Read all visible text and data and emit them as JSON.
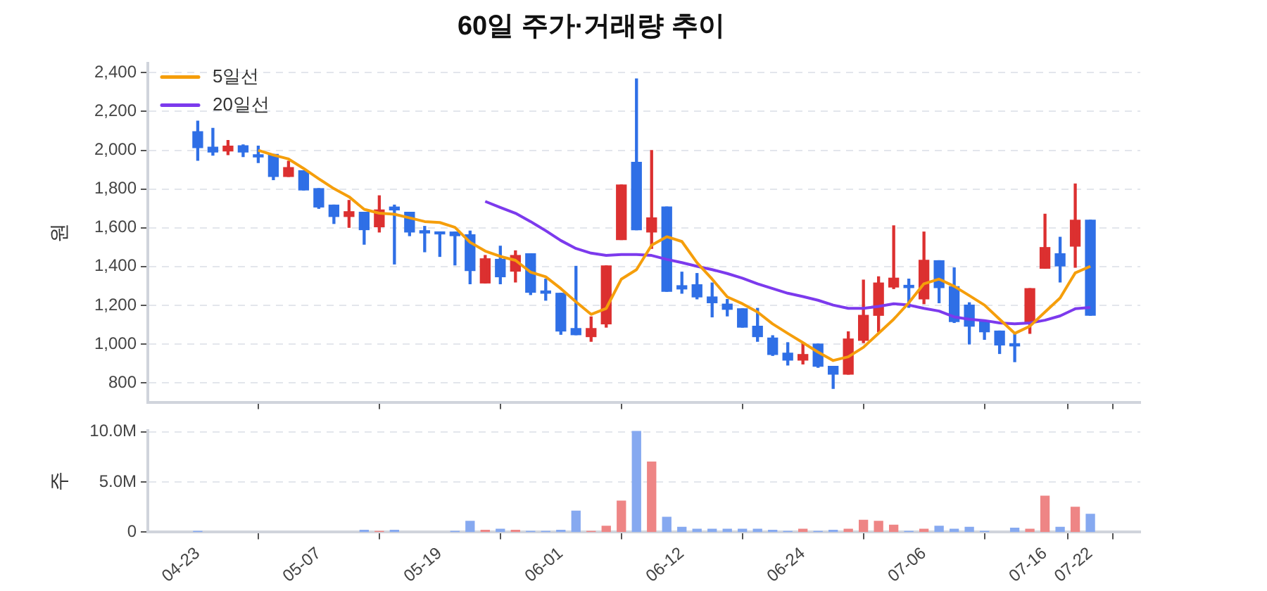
{
  "chart_data": [
    {
      "type": "candlestick",
      "title": "60일 주가·거래량 추이",
      "ylabel": "원",
      "categories": [
        null,
        null,
        null,
        null,
        null,
        null,
        null,
        null,
        null,
        null,
        null,
        null,
        null,
        null,
        null,
        null,
        null,
        null,
        null,
        null,
        null,
        null,
        null,
        null,
        null,
        null,
        null,
        null,
        null,
        null,
        null,
        null,
        null,
        null,
        null,
        null,
        null,
        null,
        null,
        null,
        null,
        null,
        null,
        null,
        null,
        null,
        null,
        null,
        null,
        null,
        null,
        null,
        null,
        null,
        null,
        null,
        null,
        null,
        null,
        null
      ],
      "ohlc": [
        [
          2096,
          2150,
          1948,
          2013
        ],
        [
          2016,
          2113,
          1974,
          1991
        ],
        [
          1996,
          2050,
          1977,
          2021
        ],
        [
          2023,
          2028,
          1967,
          1991
        ],
        [
          1977,
          2021,
          1936,
          1965
        ],
        [
          1979,
          1979,
          1848,
          1865
        ],
        [
          1865,
          1943,
          1865,
          1911
        ],
        [
          1894,
          1894,
          1795,
          1795
        ],
        [
          1802,
          1802,
          1700,
          1707
        ],
        [
          1717,
          1717,
          1622,
          1658
        ],
        [
          1658,
          1741,
          1602,
          1683
        ],
        [
          1680,
          1680,
          1515,
          1590
        ],
        [
          1605,
          1765,
          1578,
          1692
        ],
        [
          1707,
          1717,
          1413,
          1692
        ],
        [
          1680,
          1680,
          1559,
          1578
        ],
        [
          1585,
          1607,
          1476,
          1573
        ],
        [
          1578,
          1578,
          1452,
          1568
        ],
        [
          1578,
          1578,
          1408,
          1559
        ],
        [
          1564,
          1583,
          1311,
          1379
        ],
        [
          1315,
          1457,
          1315,
          1440
        ],
        [
          1437,
          1505,
          1311,
          1347
        ],
        [
          1376,
          1481,
          1320,
          1457
        ],
        [
          1466,
          1466,
          1255,
          1267
        ],
        [
          1274,
          1335,
          1226,
          1262
        ],
        [
          1262,
          1262,
          1050,
          1067
        ],
        [
          1080,
          1401,
          1048,
          1048
        ],
        [
          1038,
          1140,
          1014,
          1080
        ],
        [
          1104,
          1403,
          1087,
          1403
        ],
        [
          1539,
          1821,
          1539,
          1821
        ],
        [
          1938,
          2368,
          1590,
          1590
        ],
        [
          1578,
          1999,
          1493,
          1651
        ],
        [
          1707,
          1707,
          1272,
          1272
        ],
        [
          1301,
          1371,
          1262,
          1284
        ],
        [
          1306,
          1364,
          1233,
          1243
        ],
        [
          1243,
          1315,
          1140,
          1213
        ],
        [
          1206,
          1230,
          1145,
          1179
        ],
        [
          1182,
          1182,
          1087,
          1087
        ],
        [
          1092,
          1184,
          1014,
          1038
        ],
        [
          1031,
          1043,
          941,
          946
        ],
        [
          953,
          1007,
          892,
          917
        ],
        [
          917,
          1002,
          897,
          946
        ],
        [
          1000,
          1000,
          880,
          885
        ],
        [
          885,
          885,
          771,
          844
        ],
        [
          844,
          1063,
          844,
          1026
        ],
        [
          1019,
          1330,
          1007,
          1148
        ],
        [
          1148,
          1347,
          1063,
          1315
        ],
        [
          1294,
          1610,
          1286,
          1340
        ],
        [
          1303,
          1335,
          1189,
          1291
        ],
        [
          1233,
          1578,
          1208,
          1432
        ],
        [
          1430,
          1430,
          1213,
          1291
        ],
        [
          1296,
          1393,
          1111,
          1116
        ],
        [
          1201,
          1213,
          1000,
          1092
        ],
        [
          1121,
          1121,
          1024,
          1063
        ],
        [
          1067,
          1067,
          951,
          995
        ],
        [
          1002,
          1050,
          909,
          990
        ],
        [
          1111,
          1286,
          1055,
          1286
        ],
        [
          1391,
          1670,
          1391,
          1498
        ],
        [
          1466,
          1551,
          1320,
          1403
        ],
        [
          1505,
          1826,
          1396,
          1639
        ],
        [
          1639,
          1639,
          1148,
          1148
        ]
      ],
      "colors": [
        "#2f6fe6",
        "#2f6fe6",
        "#dc3030",
        "#2f6fe6",
        "#2f6fe6",
        "#2f6fe6",
        "#dc3030",
        "#2f6fe6",
        "#2f6fe6",
        "#2f6fe6",
        "#dc3030",
        "#2f6fe6",
        "#dc3030",
        "#2f6fe6",
        "#2f6fe6",
        "#2f6fe6",
        "#2f6fe6",
        "#2f6fe6",
        "#2f6fe6",
        "#dc3030",
        "#2f6fe6",
        "#dc3030",
        "#2f6fe6",
        "#2f6fe6",
        "#2f6fe6",
        "#2f6fe6",
        "#dc3030",
        "#dc3030",
        "#dc3030",
        "#2f6fe6",
        "#dc3030",
        "#2f6fe6",
        "#2f6fe6",
        "#2f6fe6",
        "#2f6fe6",
        "#2f6fe6",
        "#2f6fe6",
        "#2f6fe6",
        "#2f6fe6",
        "#2f6fe6",
        "#dc3030",
        "#2f6fe6",
        "#2f6fe6",
        "#dc3030",
        "#dc3030",
        "#dc3030",
        "#dc3030",
        "#2f6fe6",
        "#dc3030",
        "#2f6fe6",
        "#2f6fe6",
        "#2f6fe6",
        "#2f6fe6",
        "#2f6fe6",
        "#2f6fe6",
        "#dc3030",
        "#dc3030",
        "#2f6fe6",
        "#dc3030",
        "#2f6fe6"
      ],
      "series": [
        {
          "type": "line",
          "name": "5일선",
          "color": "#f59e0b",
          "values": [
            null,
            null,
            null,
            null,
            2000,
            1975,
            1955,
            1906,
            1853,
            1802,
            1760,
            1695,
            1675,
            1670,
            1651,
            1632,
            1627,
            1602,
            1525,
            1480,
            1452,
            1432,
            1371,
            1347,
            1286,
            1218,
            1153,
            1184,
            1335,
            1384,
            1510,
            1554,
            1529,
            1420,
            1335,
            1243,
            1208,
            1165,
            1104,
            1055,
            1007,
            958,
            915,
            934,
            983,
            1055,
            1128,
            1213,
            1311,
            1335,
            1298,
            1250,
            1201,
            1128,
            1055,
            1092,
            1165,
            1238,
            1367,
            1401
          ]
        },
        {
          "type": "line",
          "name": "20일선",
          "color": "#7c3aed",
          "values": [
            null,
            null,
            null,
            null,
            null,
            null,
            null,
            null,
            null,
            null,
            null,
            null,
            null,
            null,
            null,
            null,
            null,
            null,
            null,
            1736,
            1705,
            1675,
            1632,
            1585,
            1534,
            1493,
            1469,
            1457,
            1462,
            1462,
            1457,
            1437,
            1420,
            1401,
            1384,
            1364,
            1340,
            1311,
            1286,
            1262,
            1245,
            1226,
            1201,
            1184,
            1184,
            1194,
            1208,
            1201,
            1184,
            1170,
            1140,
            1128,
            1121,
            1109,
            1104,
            1109,
            1123,
            1145,
            1182,
            1189
          ]
        }
      ],
      "ylim": [
        700,
        2450
      ],
      "yticks": [
        800,
        {
          "value": 1000,
          "label": "1,000"
        },
        {
          "value": 1200,
          "label": "1,200"
        },
        {
          "value": 1400,
          "label": "1,400"
        },
        {
          "value": 1600,
          "label": "1,600"
        },
        {
          "value": 1800,
          "label": "1,800"
        },
        {
          "value": 2000,
          "label": "2,000"
        },
        {
          "value": 2200,
          "label": "2,200"
        },
        {
          "value": 2400,
          "label": "2,400"
        }
      ],
      "grid": "y",
      "legend": "top left",
      "tick_labels": "y"
    },
    {
      "type": "bar",
      "ylabel": "주",
      "categories": [
        "04-23",
        null,
        null,
        null,
        null,
        null,
        null,
        null,
        "05-07",
        null,
        null,
        null,
        null,
        null,
        null,
        null,
        "05-19",
        null,
        null,
        null,
        null,
        null,
        null,
        null,
        "06-01",
        null,
        null,
        null,
        null,
        null,
        null,
        null,
        "06-12",
        null,
        null,
        null,
        null,
        null,
        null,
        null,
        "06-24",
        null,
        null,
        null,
        null,
        null,
        null,
        null,
        "07-06",
        null,
        null,
        null,
        null,
        null,
        null,
        null,
        "07-16",
        null,
        null,
        "07-22"
      ],
      "values": [
        100000,
        null,
        null,
        null,
        null,
        null,
        null,
        null,
        null,
        null,
        null,
        200000,
        100000,
        200000,
        null,
        null,
        null,
        100000,
        1100000,
        200000,
        300000,
        200000,
        100000,
        100000,
        200000,
        2100000,
        100000,
        600000,
        3100000,
        10100000,
        7000000,
        1500000,
        500000,
        300000,
        300000,
        300000,
        300000,
        300000,
        200000,
        100000,
        300000,
        100000,
        200000,
        300000,
        1200000,
        1100000,
        700000,
        100000,
        300000,
        600000,
        300000,
        500000,
        100000,
        null,
        400000,
        300000,
        3600000,
        500000,
        2500000,
        1800000
      ],
      "colors": [
        "#86a9f0",
        "#86a9f0",
        "#ee8585",
        "#86a9f0",
        "#86a9f0",
        "#86a9f0",
        "#ee8585",
        "#86a9f0",
        "#86a9f0",
        "#86a9f0",
        "#ee8585",
        "#86a9f0",
        "#ee8585",
        "#86a9f0",
        "#86a9f0",
        "#86a9f0",
        "#86a9f0",
        "#86a9f0",
        "#86a9f0",
        "#ee8585",
        "#86a9f0",
        "#ee8585",
        "#86a9f0",
        "#86a9f0",
        "#86a9f0",
        "#86a9f0",
        "#ee8585",
        "#ee8585",
        "#ee8585",
        "#86a9f0",
        "#ee8585",
        "#86a9f0",
        "#86a9f0",
        "#86a9f0",
        "#86a9f0",
        "#86a9f0",
        "#86a9f0",
        "#86a9f0",
        "#86a9f0",
        "#86a9f0",
        "#ee8585",
        "#86a9f0",
        "#86a9f0",
        "#ee8585",
        "#ee8585",
        "#ee8585",
        "#ee8585",
        "#86a9f0",
        "#ee8585",
        "#86a9f0",
        "#86a9f0",
        "#86a9f0",
        "#86a9f0",
        "#86a9f0",
        "#86a9f0",
        "#ee8585",
        "#ee8585",
        "#86a9f0",
        "#ee8585",
        "#86a9f0"
      ],
      "ylim": [
        0,
        10100000
      ],
      "yticks": [
        0,
        {
          "value": 5000000,
          "label": "5.0M"
        },
        {
          "value": 10000000,
          "label": "10.0M"
        }
      ],
      "grid": "y"
    }
  ]
}
